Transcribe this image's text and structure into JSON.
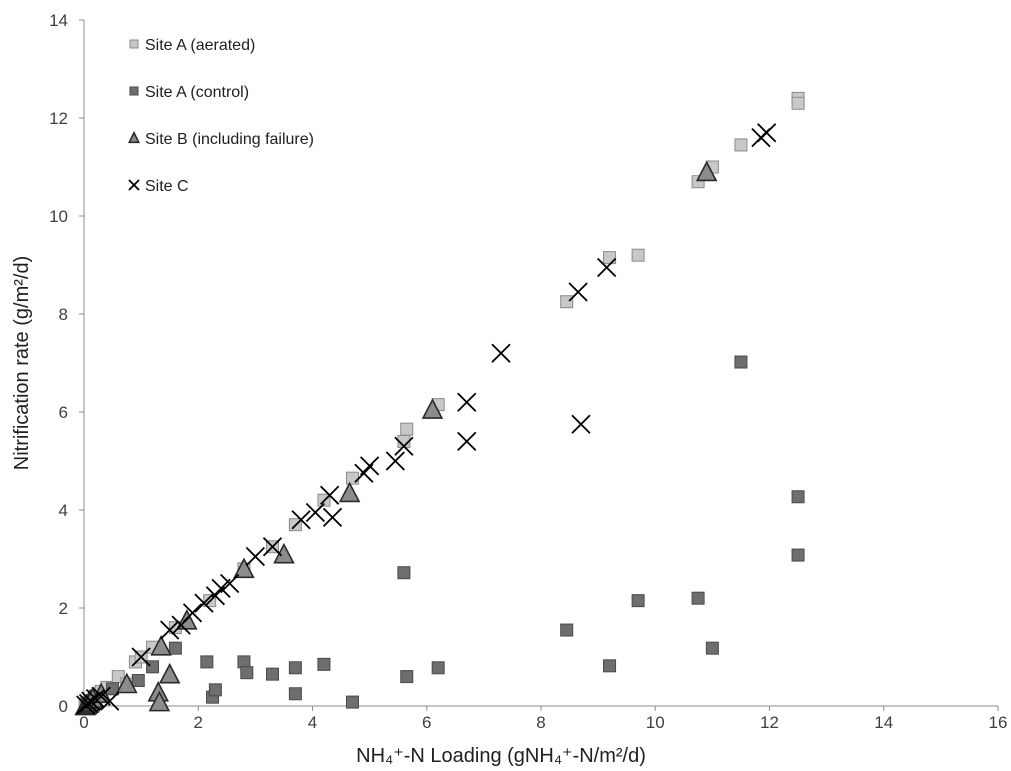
{
  "chart_data": {
    "type": "scatter",
    "title": "",
    "xlabel": "NH₄⁺-N Loading (gNH₄⁺-N/m²/d)",
    "ylabel": "Nitrification rate (g/m²/d)",
    "xlim": [
      0,
      16
    ],
    "ylim": [
      0,
      14
    ],
    "xticks": [
      "0",
      "2",
      "4",
      "6",
      "8",
      "10",
      "12",
      "14",
      "16"
    ],
    "yticks": [
      "0",
      "2",
      "4",
      "6",
      "8",
      "10",
      "12",
      "14"
    ],
    "grid": false,
    "legend_position": "top-left",
    "series": [
      {
        "name": "Site A (aerated)",
        "marker": "square",
        "color": "#c8c8c8",
        "stroke": "#8a8a8a",
        "points": [
          [
            0.02,
            0.02
          ],
          [
            0.05,
            0.05
          ],
          [
            0.1,
            0.1
          ],
          [
            0.15,
            0.12
          ],
          [
            0.2,
            0.2
          ],
          [
            0.25,
            0.25
          ],
          [
            0.3,
            0.3
          ],
          [
            0.4,
            0.38
          ],
          [
            0.6,
            0.6
          ],
          [
            0.75,
            0.45
          ],
          [
            0.9,
            0.9
          ],
          [
            1.0,
            1.0
          ],
          [
            1.2,
            1.2
          ],
          [
            1.6,
            1.6
          ],
          [
            2.2,
            2.15
          ],
          [
            2.8,
            2.8
          ],
          [
            3.3,
            3.25
          ],
          [
            3.7,
            3.7
          ],
          [
            4.2,
            4.2
          ],
          [
            4.7,
            4.65
          ],
          [
            5.6,
            5.4
          ],
          [
            5.65,
            5.65
          ],
          [
            6.2,
            6.15
          ],
          [
            8.45,
            8.25
          ],
          [
            9.2,
            9.15
          ],
          [
            9.7,
            9.2
          ],
          [
            10.75,
            10.7
          ],
          [
            11.0,
            11.0
          ],
          [
            11.5,
            11.45
          ],
          [
            12.5,
            12.4
          ],
          [
            12.5,
            12.3
          ]
        ]
      },
      {
        "name": "Site A (control)",
        "marker": "square",
        "color": "#6e6e6e",
        "stroke": "#4a4a4a",
        "points": [
          [
            0.05,
            0.02
          ],
          [
            0.1,
            0.05
          ],
          [
            0.2,
            0.1
          ],
          [
            0.5,
            0.35
          ],
          [
            0.95,
            0.52
          ],
          [
            1.2,
            0.8
          ],
          [
            1.6,
            1.18
          ],
          [
            2.15,
            0.9
          ],
          [
            2.25,
            0.18
          ],
          [
            2.3,
            0.33
          ],
          [
            2.8,
            0.9
          ],
          [
            2.85,
            0.68
          ],
          [
            3.3,
            0.65
          ],
          [
            3.7,
            0.78
          ],
          [
            3.7,
            0.25
          ],
          [
            4.2,
            0.85
          ],
          [
            4.7,
            0.08
          ],
          [
            5.6,
            2.72
          ],
          [
            5.65,
            0.6
          ],
          [
            6.2,
            0.78
          ],
          [
            8.45,
            1.55
          ],
          [
            9.2,
            0.82
          ],
          [
            9.7,
            2.15
          ],
          [
            10.75,
            2.2
          ],
          [
            11.0,
            1.18
          ],
          [
            11.5,
            7.02
          ],
          [
            12.5,
            4.27
          ],
          [
            12.5,
            3.08
          ]
        ]
      },
      {
        "name": "Site B (including failure)",
        "marker": "triangle",
        "color": "#8c8c8c",
        "stroke": "#2a2a2a",
        "points": [
          [
            0.02,
            0.0
          ],
          [
            0.05,
            0.02
          ],
          [
            0.08,
            0.05
          ],
          [
            0.1,
            0.08
          ],
          [
            0.12,
            0.12
          ],
          [
            0.15,
            0.15
          ],
          [
            0.3,
            0.25
          ],
          [
            0.75,
            0.45
          ],
          [
            1.3,
            0.28
          ],
          [
            1.32,
            0.08
          ],
          [
            1.35,
            1.22
          ],
          [
            1.5,
            0.65
          ],
          [
            1.8,
            1.75
          ],
          [
            2.8,
            2.8
          ],
          [
            3.5,
            3.1
          ],
          [
            4.65,
            4.35
          ],
          [
            6.1,
            6.05
          ],
          [
            10.9,
            10.9
          ]
        ]
      },
      {
        "name": "Site C",
        "marker": "cross",
        "color": "#000000",
        "stroke": "#000000",
        "points": [
          [
            0.03,
            0.02
          ],
          [
            0.08,
            0.05
          ],
          [
            0.12,
            0.1
          ],
          [
            0.2,
            0.15
          ],
          [
            0.3,
            0.2
          ],
          [
            0.45,
            0.1
          ],
          [
            1.0,
            1.0
          ],
          [
            1.5,
            1.55
          ],
          [
            1.7,
            1.65
          ],
          [
            1.9,
            1.9
          ],
          [
            2.1,
            2.1
          ],
          [
            2.3,
            2.25
          ],
          [
            2.4,
            2.4
          ],
          [
            2.55,
            2.5
          ],
          [
            3.0,
            3.05
          ],
          [
            3.3,
            3.25
          ],
          [
            3.8,
            3.8
          ],
          [
            4.05,
            3.95
          ],
          [
            4.3,
            4.3
          ],
          [
            4.35,
            3.85
          ],
          [
            4.9,
            4.75
          ],
          [
            5.0,
            4.9
          ],
          [
            5.45,
            5.0
          ],
          [
            5.6,
            5.3
          ],
          [
            6.7,
            6.2
          ],
          [
            6.7,
            5.4
          ],
          [
            7.3,
            7.2
          ],
          [
            8.65,
            8.45
          ],
          [
            8.7,
            5.75
          ],
          [
            9.15,
            8.95
          ],
          [
            11.85,
            11.6
          ],
          [
            11.95,
            11.7
          ]
        ]
      }
    ]
  }
}
